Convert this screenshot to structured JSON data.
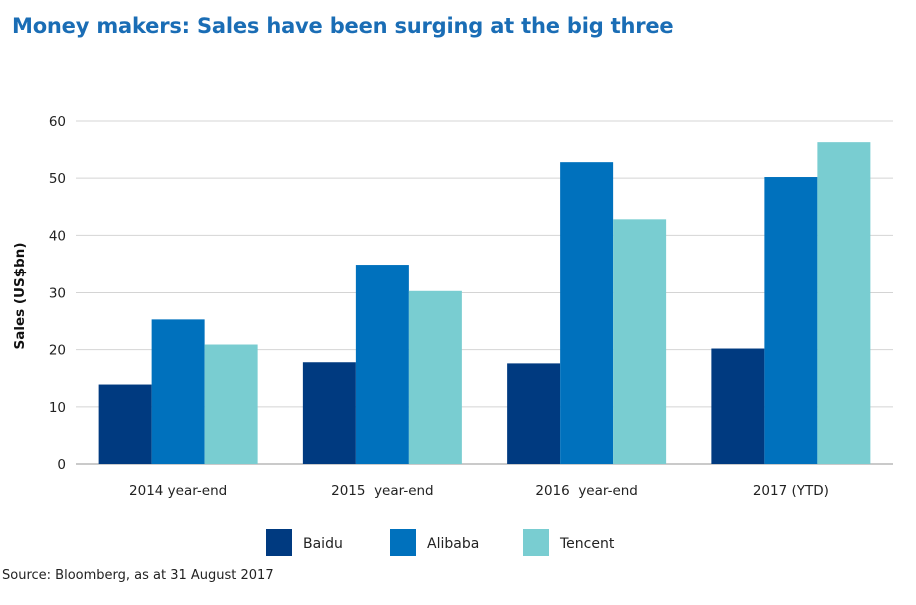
{
  "chart_data": {
    "type": "bar",
    "title": "Money makers: Sales have been surging at the big three",
    "xlabel": "",
    "ylabel": "Sales (US$bn)",
    "ylim": [
      0,
      60
    ],
    "yticks": [
      0,
      10,
      20,
      30,
      40,
      50,
      60
    ],
    "grid": true,
    "legend_position": "bottom-center",
    "categories": [
      "2014 year-end",
      "2015  year-end",
      "2016  year-end",
      "2017 (YTD)"
    ],
    "series": [
      {
        "name": "Baidu",
        "color": "#003a80",
        "values": [
          13.9,
          17.8,
          17.6,
          20.2
        ]
      },
      {
        "name": "Alibaba",
        "color": "#0071bd",
        "values": [
          25.3,
          34.8,
          52.8,
          50.2
        ]
      },
      {
        "name": "Tencent",
        "color": "#79cdd1",
        "values": [
          20.9,
          30.3,
          42.8,
          56.3
        ]
      }
    ]
  },
  "source": "Source: Bloomberg, as at 31 August 2017"
}
